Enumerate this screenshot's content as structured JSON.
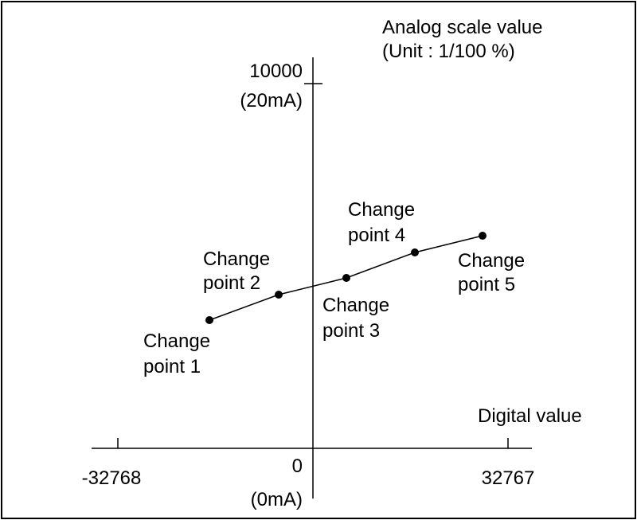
{
  "y_axis": {
    "title": [
      "Analog scale value",
      "(Unit : 1/100 %)"
    ],
    "max_label": [
      "10000",
      "(20mA)"
    ]
  },
  "x_axis": {
    "title": "Digital value",
    "min_label": "-32768",
    "max_label": "32767",
    "origin_label": [
      "0",
      "(0mA)"
    ]
  },
  "change_points": [
    {
      "label": [
        "Change",
        "point 1"
      ]
    },
    {
      "label": [
        "Change",
        "point 2"
      ]
    },
    {
      "label": [
        "Change",
        "point 3"
      ]
    },
    {
      "label": [
        "Change",
        "point 4"
      ]
    },
    {
      "label": [
        "Change",
        "point 5"
      ]
    }
  ]
}
